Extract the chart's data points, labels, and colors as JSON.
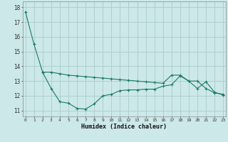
{
  "line1_x": [
    0,
    1,
    2,
    3,
    4,
    5,
    6,
    7,
    8,
    9,
    10,
    11,
    12,
    13,
    14,
    15,
    16,
    17,
    18,
    19,
    20,
    21,
    22,
    23
  ],
  "line1_y": [
    17.7,
    15.5,
    13.6,
    13.6,
    13.5,
    13.4,
    13.35,
    13.3,
    13.25,
    13.2,
    13.15,
    13.1,
    13.05,
    13.0,
    12.95,
    12.9,
    12.85,
    13.4,
    13.4,
    13.0,
    13.0,
    12.5,
    12.2,
    12.1
  ],
  "line2_x": [
    2,
    3,
    4,
    5,
    6,
    7,
    8,
    9,
    10,
    11,
    12,
    13,
    14,
    15,
    16,
    17,
    18,
    19,
    20,
    21,
    22,
    23
  ],
  "line2_y": [
    13.6,
    12.5,
    11.6,
    11.5,
    11.15,
    11.1,
    11.45,
    12.0,
    12.1,
    12.35,
    12.4,
    12.4,
    12.45,
    12.45,
    12.65,
    12.75,
    13.35,
    13.0,
    12.5,
    12.95,
    12.25,
    12.05
  ],
  "color": "#1a7a6a",
  "bg_color": "#cce8e8",
  "grid_color": "#aacccc",
  "xlabel": "Humidex (Indice chaleur)",
  "xticks": [
    0,
    1,
    2,
    3,
    4,
    5,
    6,
    7,
    8,
    9,
    10,
    11,
    12,
    13,
    14,
    15,
    16,
    17,
    18,
    19,
    20,
    21,
    22,
    23
  ],
  "yticks": [
    11,
    12,
    13,
    14,
    15,
    16,
    17,
    18
  ],
  "ylim": [
    10.6,
    18.4
  ],
  "xlim": [
    -0.3,
    23.3
  ]
}
